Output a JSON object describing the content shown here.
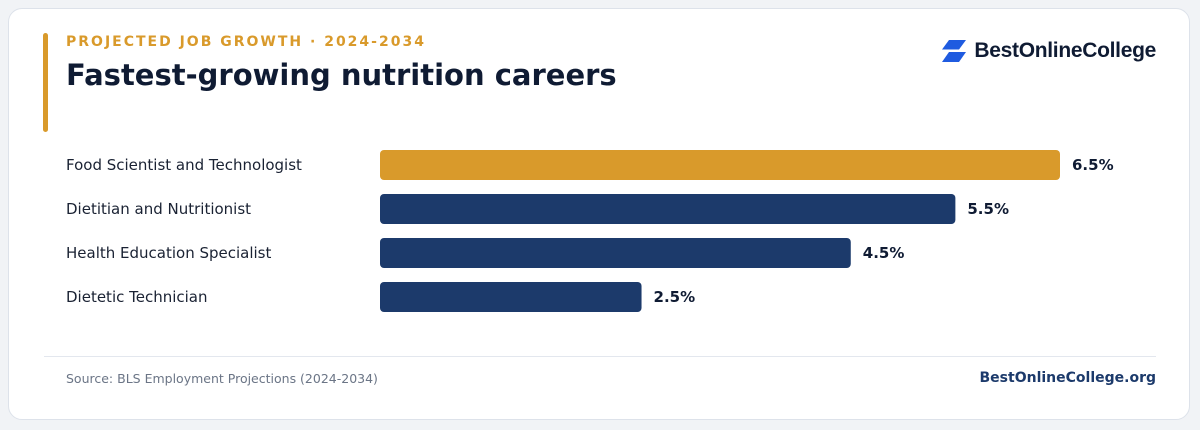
{
  "header": {
    "eyebrow": "PROJECTED JOB GROWTH · 2024-2034",
    "title": "Fastest-growing nutrition careers"
  },
  "brand": {
    "name": "BestOnlineCollege",
    "icon": "brand-logo-icon",
    "color": "#1f5be0"
  },
  "chart_data": {
    "type": "bar",
    "orientation": "horizontal",
    "categories": [
      "Food Scientist and Technologist",
      "Dietitian and Nutritionist",
      "Health Education Specialist",
      "Dietetic Technician"
    ],
    "values": [
      6.5,
      5.5,
      4.5,
      2.5
    ],
    "value_labels": [
      "6.5%",
      "5.5%",
      "4.5%",
      "2.5%"
    ],
    "xlim": [
      0,
      6.5
    ],
    "colors": [
      "#d99a2b",
      "#1c3a6b",
      "#1c3a6b",
      "#1c3a6b"
    ],
    "grid": false,
    "legend": "none"
  },
  "footer": {
    "source": "Source: BLS Employment Projections (2024-2034)",
    "site": "BestOnlineCollege.org"
  }
}
